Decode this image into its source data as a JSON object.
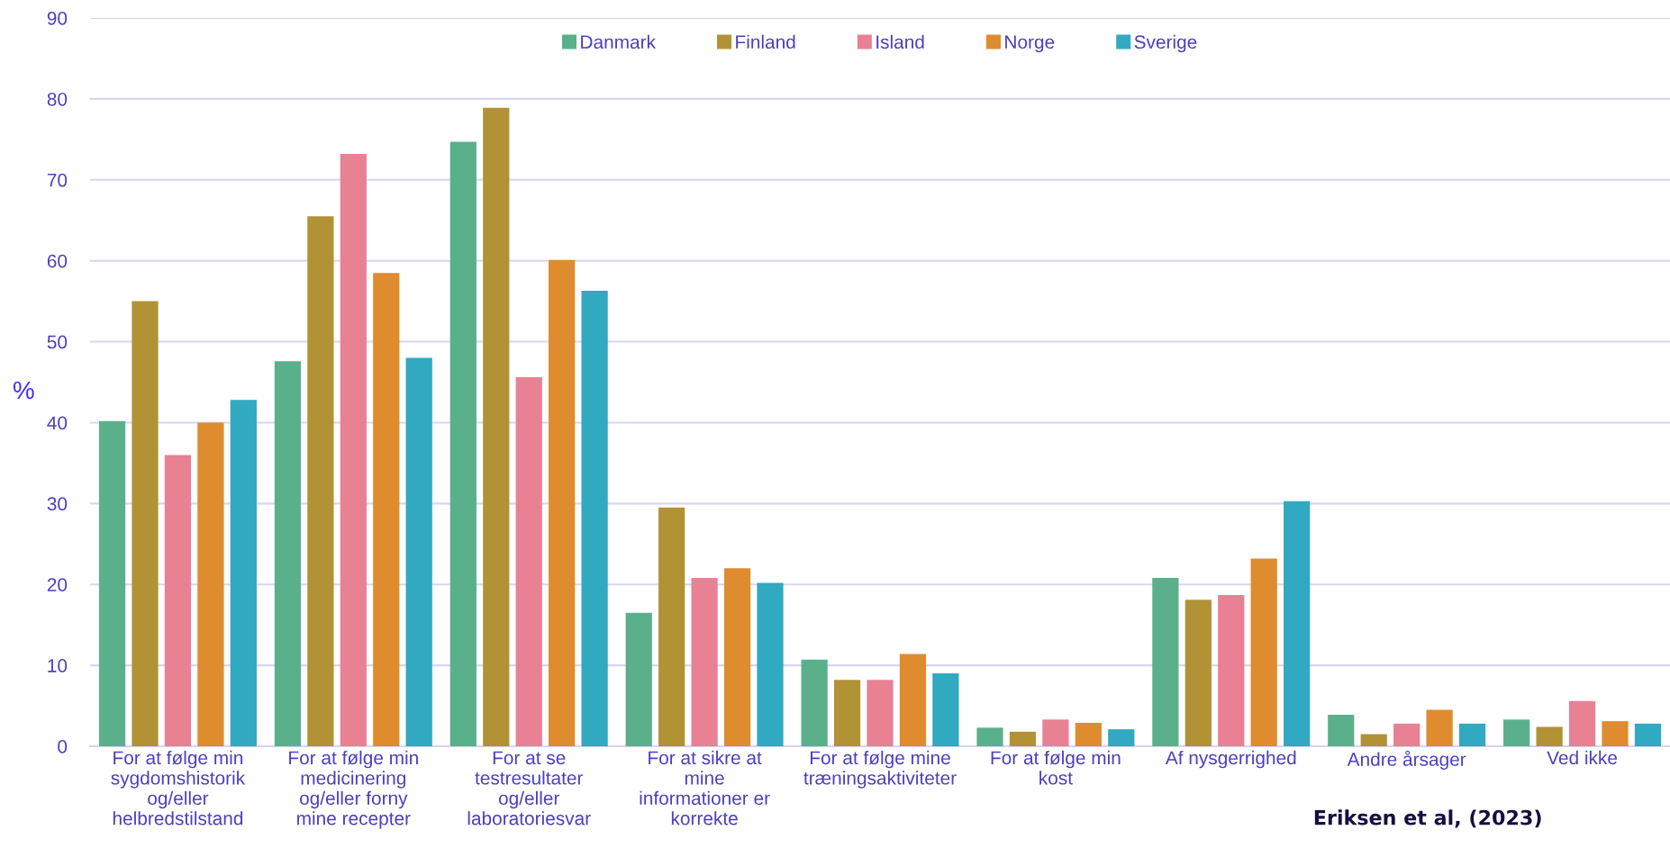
{
  "chart_data": {
    "type": "bar",
    "ylabel": "%",
    "categories": [
      "For at følge min\nsygdomshistorik\nog/eller\nhelbredstilstand",
      "For at følge min\nmedicinering\nog/eller forny\nmine recepter",
      "For at se\ntestresultater\nog/eller\nlaboratoriesvar",
      "For at sikre at\nmine\ninformationer er\nkorrekte",
      "For at følge mine\ntræningsaktiviteter",
      "For at følge min\nkost",
      "Af nysgerrighed",
      "Andre årsager",
      "Ved ikke"
    ],
    "series": [
      {
        "name": "Danmark",
        "color": "#5bb08c",
        "values": [
          40.2,
          47.6,
          74.7,
          16.5,
          10.7,
          2.3,
          20.8,
          3.9,
          3.3
        ]
      },
      {
        "name": "Finland",
        "color": "#b19336",
        "values": [
          55,
          65.5,
          78.9,
          29.5,
          8.2,
          1.8,
          18.1,
          1.5,
          2.4
        ]
      },
      {
        "name": "Island",
        "color": "#e78193",
        "values": [
          36,
          73.2,
          45.6,
          20.8,
          8.2,
          3.3,
          18.7,
          2.8,
          5.6
        ]
      },
      {
        "name": "Norge",
        "color": "#de8c2e",
        "values": [
          40,
          58.5,
          60.1,
          22,
          11.4,
          2.9,
          23.2,
          4.5,
          3.1
        ]
      },
      {
        "name": "Sverige",
        "color": "#30a9c1",
        "values": [
          42.8,
          48,
          56.3,
          20.2,
          9,
          2.1,
          30.3,
          2.8,
          2.8
        ]
      }
    ],
    "ylim": [
      0,
      90
    ],
    "yticks": [
      0,
      10,
      20,
      30,
      40,
      50,
      60,
      70,
      80,
      90
    ],
    "grid": "y",
    "legend": "top",
    "annotations": [
      "Eriksen et al, (2023)"
    ]
  }
}
